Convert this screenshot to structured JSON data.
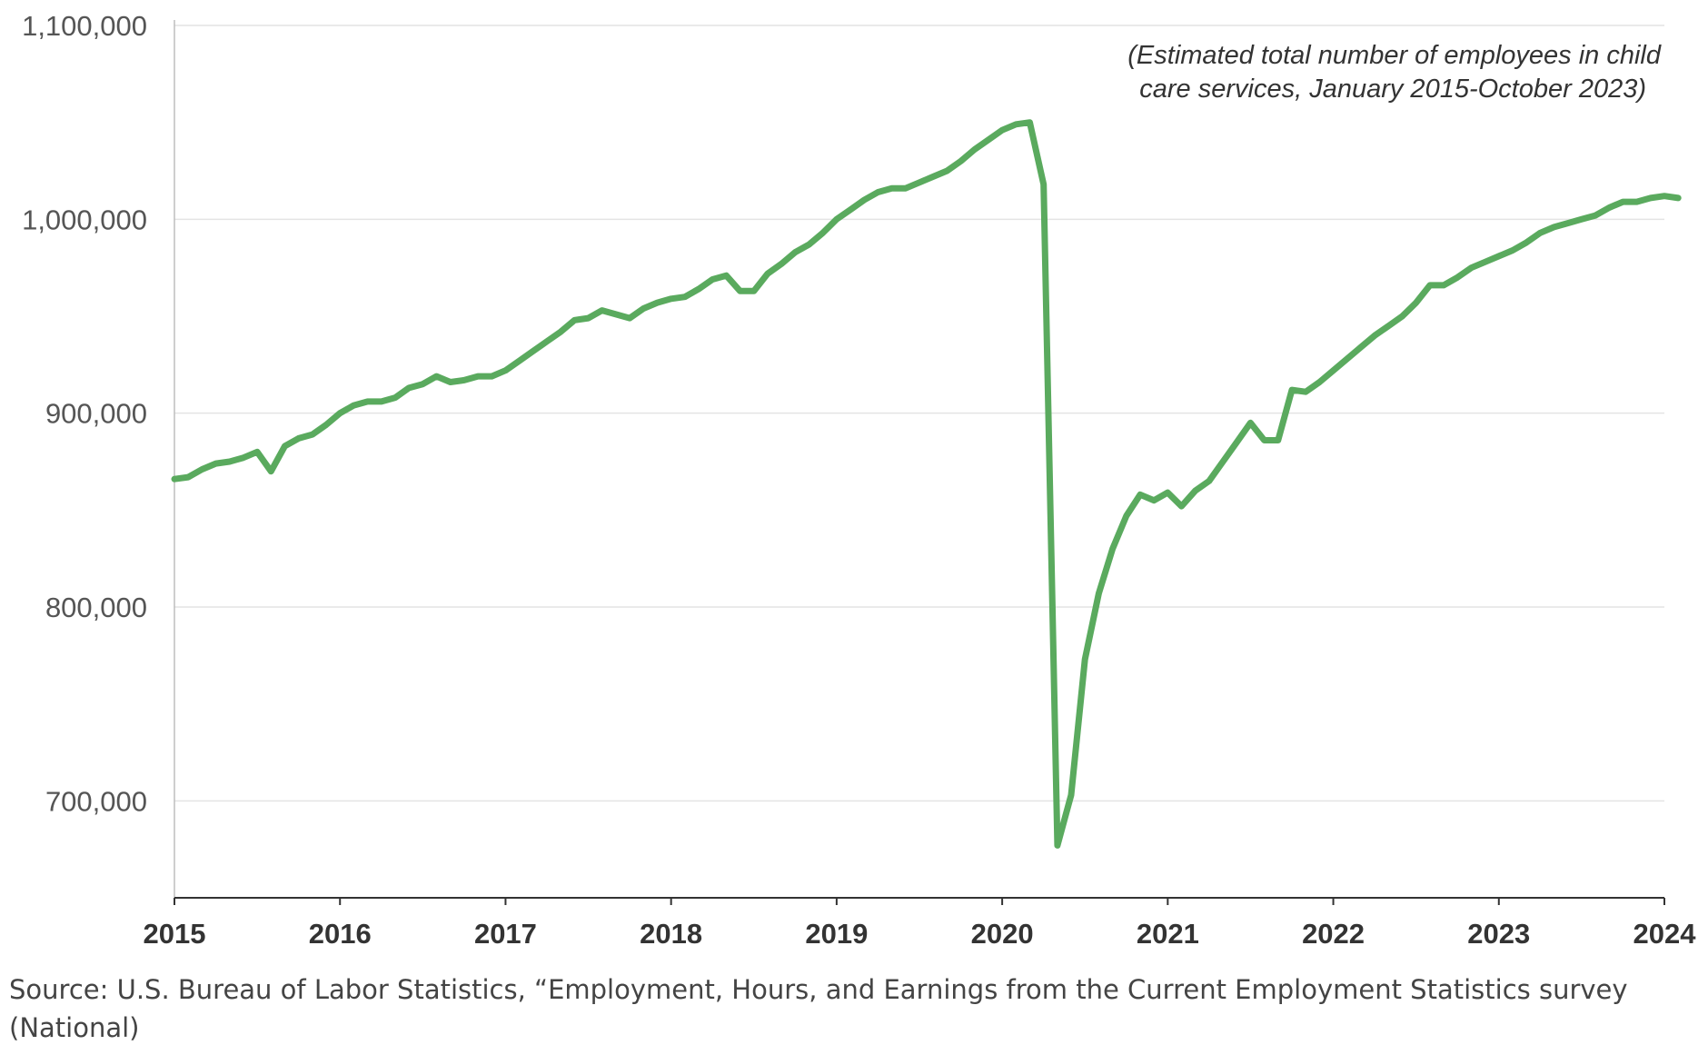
{
  "chart_data": {
    "type": "line",
    "title": "",
    "annotation_lines": [
      "(Estimated total number of employees in child",
      "care services, January 2015-October 2023)"
    ],
    "xlabel": "",
    "ylabel": "",
    "x_ticks": [
      "2015",
      "2016",
      "2017",
      "2018",
      "2019",
      "2020",
      "2021",
      "2022",
      "2023",
      "2024"
    ],
    "y_ticks": [
      "700,000",
      "800,000",
      "900,000",
      "1,000,000",
      "1,100,000"
    ],
    "y_tick_values": [
      700000,
      800000,
      900000,
      1000000,
      1100000
    ],
    "xlim": [
      2015,
      2024
    ],
    "ylim": [
      650000,
      1100000
    ],
    "grid": "horizontal",
    "line_color": "#5aaa5e",
    "series": [
      {
        "start_month": "2015-01",
        "values": [
          866000,
          867000,
          871000,
          874000,
          875000,
          877000,
          880000,
          870000,
          883000,
          887000,
          889000,
          894000,
          900000,
          904000,
          906000,
          906000,
          908000,
          913000,
          915000,
          919000,
          916000,
          917000,
          919000,
          919000,
          922000,
          927000,
          932000,
          937000,
          942000,
          948000,
          949000,
          953000,
          951000,
          949000,
          954000,
          957000,
          959000,
          960000,
          964000,
          969000,
          971000,
          963000,
          963000,
          972000,
          977000,
          983000,
          987000,
          993000,
          1000000,
          1005000,
          1010000,
          1014000,
          1016000,
          1016000,
          1019000,
          1022000,
          1025000,
          1030000,
          1036000,
          1041000,
          1046000,
          1049000,
          1050000,
          1018000,
          677000,
          703000,
          773000,
          807000,
          830000,
          847000,
          858000,
          855000,
          859000,
          852000,
          860000,
          865000,
          875000,
          885000,
          895000,
          886000,
          886000,
          912000,
          911000,
          916000,
          922000,
          928000,
          934000,
          940000,
          945000,
          950000,
          957000,
          966000,
          966000,
          970000,
          975000,
          978000,
          981000,
          984000,
          988000,
          993000,
          996000,
          998000,
          1000000,
          1002000,
          1006000,
          1009000,
          1009000,
          1011000,
          1012000,
          1011000
        ]
      }
    ]
  },
  "source_text": "Source: U.S. Bureau of Labor Statistics, “Employment, Hours, and Earnings from the Current Employment Statistics survey (National)"
}
